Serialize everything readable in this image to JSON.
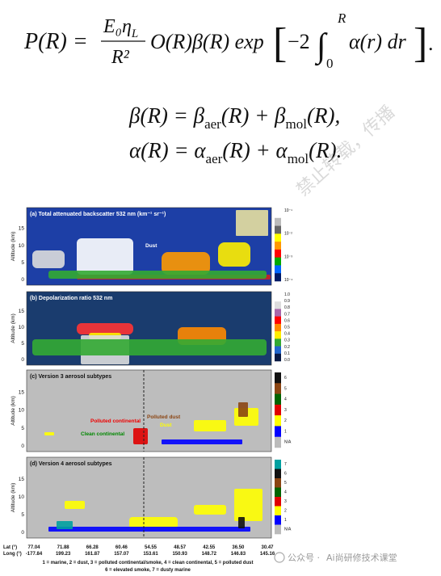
{
  "equations": {
    "eq1": {
      "lhs": "P(R) =",
      "num": "E₀η",
      "num_sub": "L",
      "den": "R²",
      "body": "O(R)β(R) exp",
      "bracket_open": "[",
      "factor": "−2",
      "integral": "∫",
      "int_upper": "R",
      "int_lower": "0",
      "integrand": "α(r) dr",
      "bracket_close": "]",
      "end": "."
    },
    "eq2": [
      "β(R) = β",
      "aer",
      "(R) + β",
      "mol",
      "(R),"
    ],
    "eq3": [
      "α(R) = α",
      "aer",
      "(R) + α",
      "mol",
      "(R)."
    ]
  },
  "watermark": "禁止转载，传播",
  "figure": {
    "panels": [
      {
        "title": "(a) Total attenuated backscatter 532 nm (km⁻¹ sr⁻¹)",
        "ylabel": "Altitude (km)",
        "yticks": [
          0,
          5,
          10,
          15
        ],
        "colorbar_ticks": [
          "10⁻¹",
          "10⁻²",
          "10⁻³",
          "10⁻⁴"
        ],
        "annotations": [
          "Dust"
        ]
      },
      {
        "title": "(b) Depolarization ratio 532 nm",
        "ylabel": "Altitude (km)",
        "yticks": [
          0,
          5,
          10,
          15
        ],
        "colorbar_ticks": [
          "1.0",
          "0.9",
          "0.8",
          "0.7",
          "0.6",
          "0.5",
          "0.4",
          "0.3",
          "0.2",
          "0.1",
          "0.0"
        ],
        "annotations": []
      },
      {
        "title": "(c) Version 3 aerosol subtypes",
        "ylabel": "Altitude (km)",
        "yticks": [
          0,
          5,
          10,
          15
        ],
        "colorbar_ticks": [
          "6",
          "5",
          "4",
          "3",
          "2",
          "1",
          "N/A"
        ],
        "annotations": [
          "Polluted continental",
          "Clean continental",
          "Polluted dust",
          "Dust"
        ]
      },
      {
        "title": "(d) Version 4 aerosol subtypes",
        "ylabel": "Altitude (km)",
        "yticks": [
          0,
          5,
          10,
          15
        ],
        "colorbar_ticks": [
          "7",
          "6",
          "5",
          "4",
          "3",
          "2",
          "1",
          "N/A"
        ],
        "annotations": []
      }
    ],
    "lat_label": "Lat (°)",
    "long_label": "Long (°)",
    "lat": [
      "77.04",
      "71.88",
      "66.28",
      "60.46",
      "54.55",
      "48.57",
      "42.55",
      "36.50",
      "30.47"
    ],
    "long": [
      "-177.84",
      "199.23",
      "161.87",
      "157.07",
      "153.61",
      "150.93",
      "148.72",
      "146.83",
      "145.16"
    ],
    "legend": [
      "1 = marine, 2 = dust, 3 = polluted continental/smoke, 4 = clean continental, 5 = polluted dust",
      "6 = elevated smoke, 7 = dusty marine"
    ]
  },
  "brand": {
    "prefix": "公众号 ·",
    "name": "Ai尚研修技术课堂"
  }
}
